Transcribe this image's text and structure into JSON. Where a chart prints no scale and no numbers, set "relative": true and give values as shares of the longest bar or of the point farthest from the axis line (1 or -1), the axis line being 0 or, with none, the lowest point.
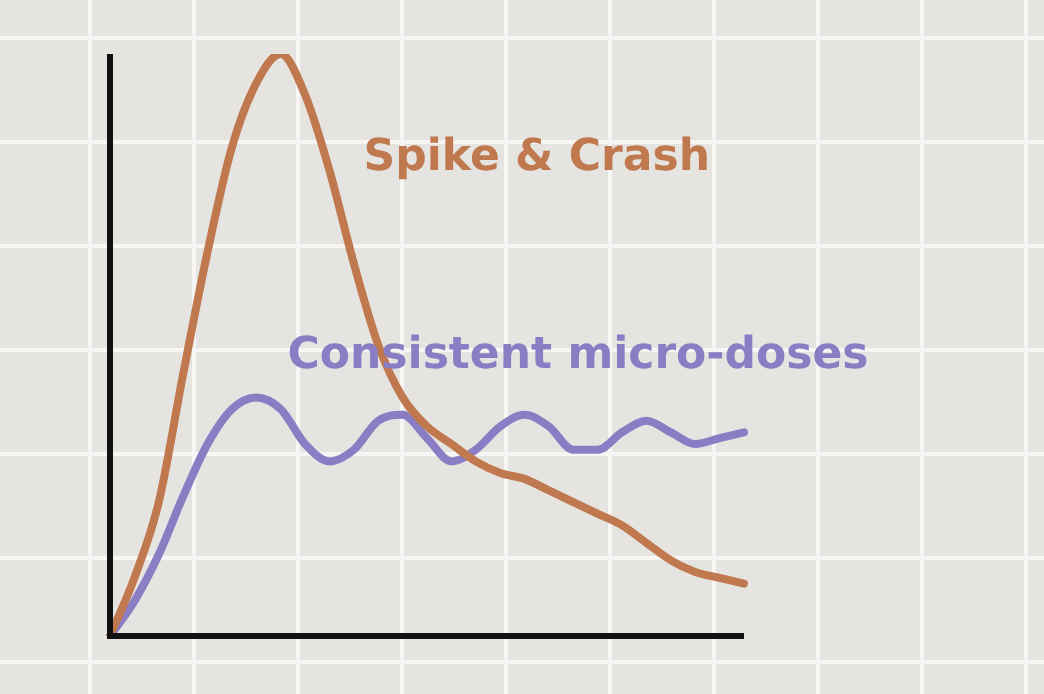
{
  "chart_data": {
    "type": "line",
    "relative": true,
    "categories": [
      null,
      null,
      null,
      null,
      null,
      null,
      null,
      null,
      null,
      null,
      null,
      null,
      null,
      null,
      null,
      null,
      null,
      null,
      null,
      null,
      null,
      null,
      null,
      null,
      null,
      null,
      null
    ],
    "series": [
      {
        "name": "Spike & Crash",
        "color": "#c0784f",
        "values": [
          0,
          0.1,
          0.23,
          0.45,
          0.66,
          0.84,
          0.95,
          1,
          0.93,
          0.8,
          0.64,
          0.5,
          0.41,
          0.36,
          0.33,
          0.3,
          0.28,
          0.27,
          0.25,
          0.23,
          0.21,
          0.19,
          0.16,
          0.13,
          0.11,
          0.1,
          0.09
        ]
      },
      {
        "name": "Consistent micro-doses",
        "color": "#8a7dc4",
        "values": [
          0,
          0.06,
          0.14,
          0.24,
          0.33,
          0.39,
          0.41,
          0.39,
          0.33,
          0.3,
          0.32,
          0.37,
          0.38,
          0.34,
          0.3,
          0.32,
          0.36,
          0.38,
          0.36,
          0.32,
          0.32,
          0.35,
          0.37,
          0.35,
          0.33,
          0.34,
          0.35
        ]
      }
    ],
    "grid": false,
    "legend": false,
    "marker": "none",
    "line_style": "solid"
  }
}
